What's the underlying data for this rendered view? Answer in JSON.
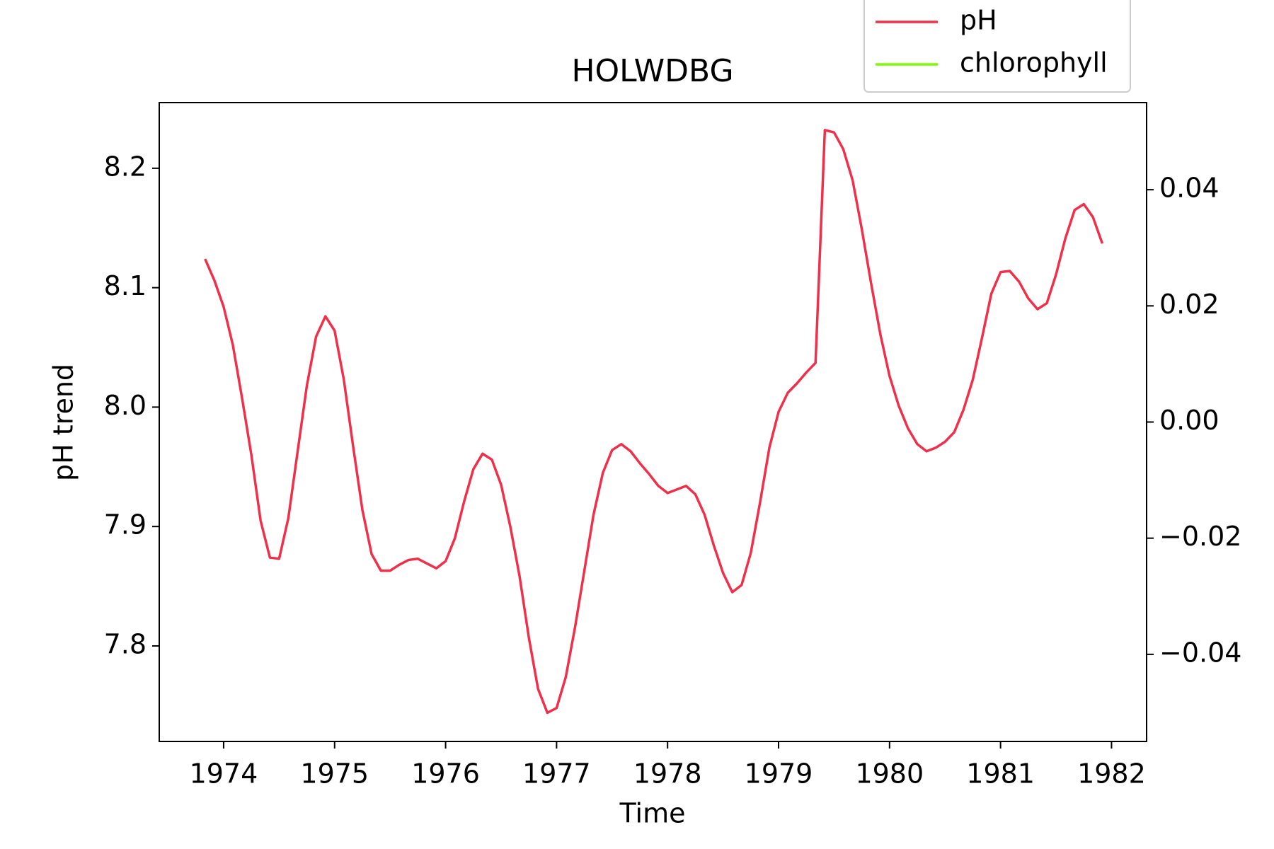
{
  "chart_data": {
    "type": "line",
    "title": "HOLWDBG",
    "x_label": "Time",
    "y_label": "pH trend",
    "x": [
      1973.833,
      1973.917,
      1974.0,
      1974.083,
      1974.167,
      1974.25,
      1974.333,
      1974.417,
      1974.5,
      1974.583,
      1974.667,
      1974.75,
      1974.833,
      1974.917,
      1975.0,
      1975.083,
      1975.167,
      1975.25,
      1975.333,
      1975.417,
      1975.5,
      1975.583,
      1975.667,
      1975.75,
      1975.833,
      1975.917,
      1976.0,
      1976.083,
      1976.167,
      1976.25,
      1976.333,
      1976.417,
      1976.5,
      1976.583,
      1976.667,
      1976.75,
      1976.833,
      1976.917,
      1977.0,
      1977.083,
      1977.167,
      1977.25,
      1977.333,
      1977.417,
      1977.5,
      1977.583,
      1977.667,
      1977.75,
      1977.833,
      1977.917,
      1978.0,
      1978.083,
      1978.167,
      1978.25,
      1978.333,
      1978.417,
      1978.5,
      1978.583,
      1978.667,
      1978.75,
      1978.833,
      1978.917,
      1979.0,
      1979.083,
      1979.167,
      1979.25,
      1979.333,
      1979.417,
      1979.5,
      1979.583,
      1979.667,
      1979.75,
      1979.833,
      1979.917,
      1980.0,
      1980.083,
      1980.167,
      1980.25,
      1980.333,
      1980.417,
      1980.5,
      1980.583,
      1980.667,
      1980.75,
      1980.833,
      1980.917,
      1981.0,
      1981.083,
      1981.167,
      1981.25,
      1981.333,
      1981.417,
      1981.5,
      1981.583,
      1981.667,
      1981.75,
      1981.833,
      1981.917
    ],
    "series": [
      {
        "name": "pH",
        "color": "#f0304a",
        "values": [
          8.124,
          8.106,
          8.084,
          8.052,
          8.007,
          7.96,
          7.905,
          7.874,
          7.873,
          7.907,
          7.963,
          8.018,
          8.059,
          8.076,
          8.064,
          8.023,
          7.967,
          7.914,
          7.877,
          7.863,
          7.863,
          7.868,
          7.872,
          7.873,
          7.869,
          7.865,
          7.871,
          7.89,
          7.921,
          7.948,
          7.961,
          7.956,
          7.935,
          7.9,
          7.858,
          7.807,
          7.764,
          7.744,
          7.748,
          7.774,
          7.816,
          7.863,
          7.91,
          7.945,
          7.964,
          7.969,
          7.963,
          7.953,
          7.944,
          7.934,
          7.928,
          7.931,
          7.934,
          7.927,
          7.91,
          7.884,
          7.861,
          7.845,
          7.851,
          7.878,
          7.92,
          7.966,
          7.996,
          8.012,
          8.02,
          8.029,
          8.037,
          8.232,
          8.23,
          8.216,
          8.19,
          8.149,
          8.104,
          8.061,
          8.026,
          8.001,
          7.982,
          7.969,
          7.963,
          7.966,
          7.971,
          7.979,
          7.998,
          8.023,
          8.058,
          8.095,
          8.113,
          8.114,
          8.105,
          8.091,
          8.082,
          8.087,
          8.111,
          8.141,
          8.165,
          8.17,
          8.159,
          8.137
        ]
      },
      {
        "name": "chlorophyll",
        "color": "#7cfc00",
        "axis": "y2",
        "values": [
          null,
          null,
          null,
          null,
          null,
          null,
          null,
          null,
          null,
          null,
          null,
          null,
          null,
          null,
          null,
          null,
          null,
          null,
          null,
          null,
          null,
          null,
          null,
          null,
          null,
          null,
          null,
          null,
          null,
          null,
          null,
          null,
          null,
          null,
          null,
          null,
          null,
          null,
          null,
          null,
          null,
          null,
          null,
          null,
          null,
          null,
          null,
          null,
          null,
          null,
          null,
          null,
          null,
          null,
          null,
          null,
          null,
          null,
          null,
          null,
          null,
          null,
          null,
          null,
          null,
          null,
          null,
          null,
          null,
          null,
          null,
          null,
          null,
          null,
          null,
          null,
          null,
          null,
          null,
          null,
          null,
          null,
          null,
          null,
          null,
          null,
          null,
          null,
          null,
          null,
          null,
          null,
          null,
          null,
          null,
          null,
          null,
          null
        ]
      }
    ],
    "xlim": [
      1973.42,
      1982.316
    ],
    "xticks": [
      1974,
      1975,
      1976,
      1977,
      1978,
      1979,
      1980,
      1981,
      1982
    ],
    "ylim": [
      7.72,
      8.255
    ],
    "yticks": [
      7.8,
      7.9,
      {
        "value": 8.0,
        "label": "8.0"
      },
      8.1,
      8.2
    ],
    "y2lim": [
      -0.055,
      0.055
    ],
    "y2ticks": [
      {
        "value": -0.04,
        "label": "−0.04"
      },
      {
        "value": -0.02,
        "label": "−0.02"
      },
      {
        "value": 0,
        "label": "0.00"
      },
      0.02,
      0.04
    ],
    "legend": "upper right"
  }
}
